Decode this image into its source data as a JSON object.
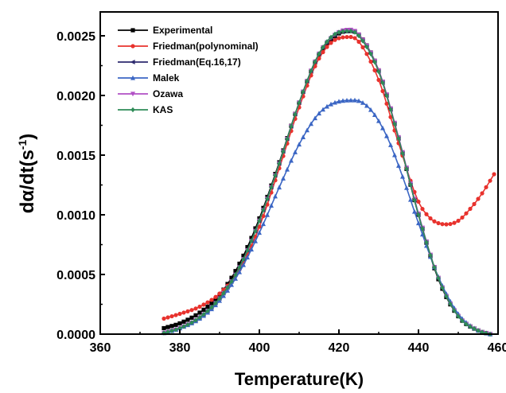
{
  "chart_data": {
    "type": "line",
    "xlabel": "Temperature(K)",
    "ylabel_main": "dα/dt(s",
    "ylabel_sup": "-1",
    "ylabel_close": ")",
    "xlim": [
      360,
      460
    ],
    "ylim": [
      0,
      0.0027
    ],
    "xticks": [
      360,
      380,
      400,
      420,
      440,
      460
    ],
    "yticks": [
      0.0,
      0.0005,
      0.001,
      0.0015,
      0.002,
      0.0025
    ],
    "ytick_labels": [
      "0.0000",
      "0.0005",
      "0.0010",
      "0.0015",
      "0.0020",
      "0.0025"
    ],
    "legend_position": "top-left",
    "grid": false,
    "series": [
      {
        "name": "Experimental",
        "color": "#000000",
        "marker": "square",
        "x": [
          376,
          380,
          385,
          390,
          395,
          400,
          405,
          410,
          415,
          420,
          423,
          425,
          430,
          435,
          440,
          445,
          450,
          455,
          458
        ],
        "y": [
          5e-05,
          9e-05,
          0.00018,
          0.00033,
          0.00059,
          0.00097,
          0.00144,
          0.00194,
          0.00234,
          0.00252,
          0.00254,
          0.00251,
          0.00221,
          0.00164,
          0.001,
          0.00046,
          0.00015,
          3e-05,
          0.0
        ]
      },
      {
        "name": "Friedman(polynominal)",
        "color": "#e8322d",
        "marker": "circle",
        "x": [
          376,
          380,
          385,
          390,
          395,
          400,
          405,
          410,
          415,
          420,
          423,
          425,
          430,
          435,
          440,
          443,
          445,
          447,
          450,
          453,
          456,
          459
        ],
        "y": [
          0.00013,
          0.00017,
          0.00023,
          0.00034,
          0.00054,
          0.0009,
          0.00139,
          0.0019,
          0.00231,
          0.00248,
          0.00249,
          0.00245,
          0.00213,
          0.0016,
          0.00111,
          0.00097,
          0.00093,
          0.00092,
          0.00095,
          0.00105,
          0.00118,
          0.00134
        ]
      },
      {
        "name": "Friedman(Eq.16,17)",
        "color": "#2d2a6e",
        "marker": "triangle-left",
        "x": [
          376,
          380,
          385,
          390,
          395,
          400,
          405,
          410,
          415,
          420,
          423,
          425,
          430,
          435,
          440,
          445,
          450,
          455,
          458
        ],
        "y": [
          1e-05,
          5e-05,
          0.00014,
          0.0003,
          0.00056,
          0.00095,
          0.00143,
          0.00194,
          0.00235,
          0.00253,
          0.00254,
          0.0025,
          0.0022,
          0.00164,
          0.001,
          0.00047,
          0.00015,
          3e-05,
          0.0
        ]
      },
      {
        "name": "Malek",
        "color": "#3b66c4",
        "marker": "triangle-up",
        "x": [
          376,
          380,
          385,
          390,
          395,
          400,
          405,
          410,
          415,
          420,
          424,
          428,
          432,
          436,
          440,
          445,
          450,
          455,
          458
        ],
        "y": [
          1e-05,
          5e-05,
          0.00013,
          0.00028,
          0.00052,
          0.00085,
          0.00123,
          0.00159,
          0.00185,
          0.00195,
          0.00196,
          0.00188,
          0.00166,
          0.00132,
          0.00093,
          0.00048,
          0.00017,
          3e-05,
          0.0
        ]
      },
      {
        "name": "Ozawa",
        "color": "#b14fc5",
        "marker": "triangle-down",
        "x": [
          376,
          380,
          385,
          390,
          395,
          400,
          405,
          410,
          415,
          420,
          423,
          425,
          430,
          435,
          440,
          445,
          450,
          455,
          458
        ],
        "y": [
          1e-05,
          5e-05,
          0.00014,
          0.0003,
          0.00056,
          0.00095,
          0.00143,
          0.00194,
          0.00235,
          0.00253,
          0.00255,
          0.00251,
          0.00221,
          0.00165,
          0.00101,
          0.00047,
          0.00015,
          3e-05,
          0.0
        ]
      },
      {
        "name": "KAS",
        "color": "#2e8b57",
        "marker": "diamond",
        "x": [
          376,
          380,
          385,
          390,
          395,
          400,
          405,
          410,
          415,
          420,
          423,
          425,
          430,
          435,
          440,
          445,
          450,
          455,
          458
        ],
        "y": [
          1e-05,
          5e-05,
          0.00014,
          0.0003,
          0.00056,
          0.00095,
          0.00143,
          0.00194,
          0.00235,
          0.00253,
          0.00254,
          0.0025,
          0.0022,
          0.00164,
          0.001,
          0.00047,
          0.00015,
          3e-05,
          0.0
        ]
      }
    ]
  }
}
